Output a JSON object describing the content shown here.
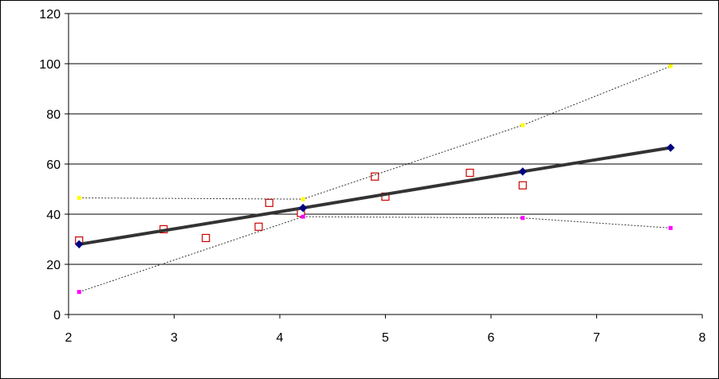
{
  "chart_data": {
    "type": "scatter",
    "xlim": [
      2,
      8
    ],
    "ylim": [
      0,
      120
    ],
    "x_ticks": [
      "2",
      "3",
      "4",
      "5",
      "6",
      "7",
      "8"
    ],
    "y_ticks": [
      "0",
      "20",
      "40",
      "60",
      "80",
      "100",
      "120"
    ],
    "grid": "horizontal",
    "legend": "none",
    "series": [
      {
        "style": "scatter",
        "marker": "open-square",
        "color": "#cc0000",
        "points": [
          [
            2.1,
            29.5
          ],
          [
            2.9,
            34
          ],
          [
            3.3,
            30.5
          ],
          [
            3.8,
            35
          ],
          [
            3.9,
            44.5
          ],
          [
            4.2,
            40.5
          ],
          [
            4.9,
            55
          ],
          [
            5.0,
            47
          ],
          [
            5.8,
            56.5
          ],
          [
            6.3,
            51.5
          ]
        ]
      },
      {
        "style": "line",
        "marker": "diamond",
        "color": "#000080",
        "line_color": "#333333",
        "points": [
          [
            2.1,
            28
          ],
          [
            4.22,
            42.5
          ],
          [
            6.3,
            57
          ],
          [
            7.7,
            66.5
          ]
        ]
      },
      {
        "style": "dotted-line",
        "marker": "small-square",
        "color": "#ffff00",
        "points": [
          [
            2.1,
            46.5
          ],
          [
            4.22,
            46
          ],
          [
            6.3,
            75.5
          ],
          [
            7.7,
            99
          ]
        ]
      },
      {
        "style": "dotted-line",
        "marker": "small-square",
        "color": "#ff00ff",
        "points": [
          [
            2.1,
            9
          ],
          [
            4.22,
            39
          ],
          [
            6.3,
            38.5
          ],
          [
            7.7,
            34.5
          ]
        ]
      }
    ]
  }
}
